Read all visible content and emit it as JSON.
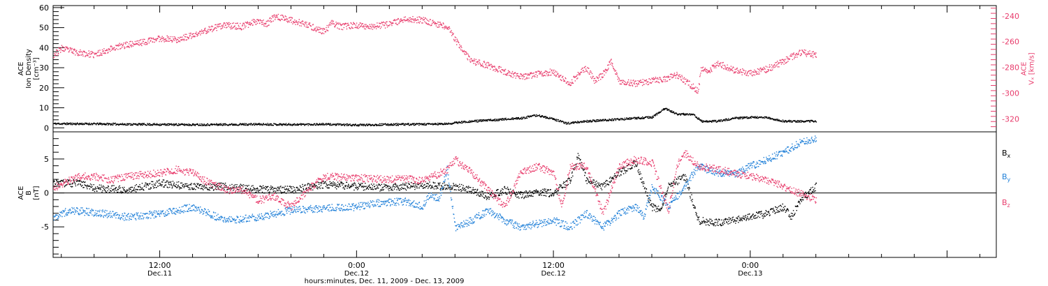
{
  "chart_data": [
    {
      "type": "scatter",
      "x_unit": "hours since 2009-12-11 00:00",
      "xlim": [
        5.5,
        63
      ],
      "x_ticks": [
        {
          "x": 12,
          "time": "12:00",
          "day": "Dec.11"
        },
        {
          "x": 24,
          "time": "0:00",
          "day": "Dec.12"
        },
        {
          "x": 36,
          "time": "12:00",
          "day": "Dec.12"
        },
        {
          "x": 48,
          "time": "0:00",
          "day": "Dec.13"
        }
      ],
      "xlabel": "hours:minutes, Dec. 11, 2009 - Dec. 13, 2009",
      "ylabel_left": [
        "ACE",
        "Ion Density",
        "[cm⁻³]"
      ],
      "ylim_left": [
        -2,
        61
      ],
      "yticks_left": [
        0,
        10,
        20,
        30,
        40,
        50,
        60
      ],
      "ylabel_right": [
        "ACE",
        "Vₓ [km/s]"
      ],
      "ylim_right": [
        -330,
        -232
      ],
      "yticks_right": [
        -320,
        -300,
        -280,
        -260,
        -240
      ],
      "series": [
        {
          "axis": "left",
          "color": "#000000",
          "points": [
            [
              5.5,
              2.3
            ],
            [
              8,
              2.2
            ],
            [
              10,
              2.0
            ],
            [
              12,
              1.9
            ],
            [
              14,
              1.8
            ],
            [
              16,
              1.9
            ],
            [
              18,
              2.0
            ],
            [
              20,
              1.9
            ],
            [
              22,
              2.0
            ],
            [
              24,
              1.6
            ],
            [
              26,
              1.9
            ],
            [
              28,
              2.0
            ],
            [
              29.5,
              2.2
            ],
            [
              30.5,
              3.2
            ],
            [
              32,
              4.0
            ],
            [
              33,
              4.5
            ],
            [
              34,
              5.0
            ],
            [
              35,
              6.5
            ],
            [
              36,
              4.5
            ],
            [
              36.8,
              2.5
            ],
            [
              38,
              3.5
            ],
            [
              39,
              4.0
            ],
            [
              40,
              4.5
            ],
            [
              41,
              5.0
            ],
            [
              42,
              5.5
            ],
            [
              42.8,
              10
            ],
            [
              43.5,
              7
            ],
            [
              44.5,
              7
            ],
            [
              45,
              3.5
            ],
            [
              46,
              3.5
            ],
            [
              47,
              5
            ],
            [
              48,
              5.5
            ],
            [
              49,
              5.3
            ],
            [
              50,
              3.5
            ],
            [
              51,
              3.5
            ],
            [
              52,
              3.6
            ]
          ]
        },
        {
          "axis": "right",
          "color": "#e83c6c",
          "points": [
            [
              5.5,
              -270
            ],
            [
              6,
              -265
            ],
            [
              7,
              -268
            ],
            [
              8,
              -270
            ],
            [
              9,
              -265
            ],
            [
              10,
              -262
            ],
            [
              11,
              -260
            ],
            [
              12,
              -257
            ],
            [
              13,
              -258
            ],
            [
              14,
              -255
            ],
            [
              15,
              -250
            ],
            [
              16,
              -247
            ],
            [
              17,
              -248
            ],
            [
              18,
              -243
            ],
            [
              18.5,
              -246
            ],
            [
              19,
              -240
            ],
            [
              20,
              -243
            ],
            [
              21,
              -247
            ],
            [
              22,
              -252
            ],
            [
              22.5,
              -245
            ],
            [
              23,
              -248
            ],
            [
              24,
              -247
            ],
            [
              25,
              -248
            ],
            [
              26,
              -246
            ],
            [
              27,
              -242
            ],
            [
              28,
              -243
            ],
            [
              29.5,
              -248
            ],
            [
              30.5,
              -268
            ],
            [
              31,
              -275
            ],
            [
              32,
              -278
            ],
            [
              33,
              -283
            ],
            [
              34,
              -287
            ],
            [
              35,
              -285
            ],
            [
              36,
              -283
            ],
            [
              36.5,
              -288
            ],
            [
              37,
              -292
            ],
            [
              37.5,
              -285
            ],
            [
              38,
              -280
            ],
            [
              38.5,
              -290
            ],
            [
              39,
              -285
            ],
            [
              39.5,
              -275
            ],
            [
              40,
              -290
            ],
            [
              41,
              -292
            ],
            [
              42,
              -290
            ],
            [
              43,
              -288
            ],
            [
              43.5,
              -285
            ],
            [
              44,
              -290
            ],
            [
              44.8,
              -298
            ],
            [
              45,
              -280
            ],
            [
              45.5,
              -282
            ],
            [
              46,
              -276
            ],
            [
              47,
              -282
            ],
            [
              48,
              -284
            ],
            [
              49,
              -281
            ],
            [
              50,
              -275
            ],
            [
              51,
              -268
            ],
            [
              52,
              -270
            ]
          ]
        }
      ]
    },
    {
      "type": "scatter",
      "x_unit": "hours since 2009-12-11 00:00",
      "xlim": [
        5.5,
        63
      ],
      "ylabel": [
        "ACE",
        "B",
        "[nT]"
      ],
      "ylim": [
        -9.5,
        9
      ],
      "yticks": [
        -5,
        0,
        5
      ],
      "zero_line": true,
      "legend_position": "right",
      "series": [
        {
          "name": "Bx",
          "name_main": "B",
          "name_sub": "x",
          "color": "#000000",
          "points": [
            [
              5.5,
              1.5
            ],
            [
              7,
              1.5
            ],
            [
              8,
              0.8
            ],
            [
              10,
              0.5
            ],
            [
              12,
              1.5
            ],
            [
              14,
              1.0
            ],
            [
              16,
              1.0
            ],
            [
              18,
              0.6
            ],
            [
              20,
              0.5
            ],
            [
              22,
              1.3
            ],
            [
              24,
              1.0
            ],
            [
              26,
              0.8
            ],
            [
              28,
              1.2
            ],
            [
              29.5,
              1.0
            ],
            [
              30.5,
              0.8
            ],
            [
              32,
              -0.5
            ],
            [
              33,
              0.5
            ],
            [
              34,
              -0.3
            ],
            [
              35,
              0.2
            ],
            [
              36,
              0
            ],
            [
              37,
              2.0
            ],
            [
              37.5,
              5.5
            ],
            [
              38,
              2.0
            ],
            [
              39,
              1.0
            ],
            [
              40,
              3.0
            ],
            [
              41,
              4.5
            ],
            [
              41.5,
              1.0
            ],
            [
              42,
              -2.0
            ],
            [
              42.5,
              -2.5
            ],
            [
              43,
              1.0
            ],
            [
              44,
              2.5
            ],
            [
              44.8,
              -4.0
            ],
            [
              45.5,
              -4.2
            ],
            [
              46,
              -4.3
            ],
            [
              47,
              -4.0
            ],
            [
              48,
              -3.5
            ],
            [
              49,
              -3.0
            ],
            [
              50,
              -2.0
            ],
            [
              50.5,
              -3.5
            ],
            [
              51,
              -1.0
            ],
            [
              52,
              1.0
            ]
          ]
        },
        {
          "name": "By",
          "name_main": "B",
          "name_sub": "y",
          "color": "#1e7fd8",
          "points": [
            [
              5.5,
              -3.5
            ],
            [
              6.5,
              -2.5
            ],
            [
              8,
              -2.8
            ],
            [
              10,
              -3.5
            ],
            [
              12,
              -3.0
            ],
            [
              13,
              -2.5
            ],
            [
              14,
              -2.0
            ],
            [
              15,
              -3.0
            ],
            [
              16,
              -4.0
            ],
            [
              18,
              -3.5
            ],
            [
              19,
              -3.0
            ],
            [
              20,
              -2.5
            ],
            [
              22,
              -2.2
            ],
            [
              24,
              -2.0
            ],
            [
              25,
              -1.5
            ],
            [
              26,
              -1.3
            ],
            [
              27,
              -1.2
            ],
            [
              28,
              -2.0
            ],
            [
              28.5,
              0
            ],
            [
              29,
              -1.0
            ],
            [
              29.5,
              3.5
            ],
            [
              30,
              -5.0
            ],
            [
              31,
              -4.0
            ],
            [
              32,
              -2.5
            ],
            [
              33,
              -4.0
            ],
            [
              34,
              -5.0
            ],
            [
              35,
              -4.5
            ],
            [
              36,
              -4.0
            ],
            [
              37,
              -5.0
            ],
            [
              38,
              -3.0
            ],
            [
              39,
              -5.0
            ],
            [
              40,
              -3.0
            ],
            [
              41,
              -2.0
            ],
            [
              41.5,
              -3.5
            ],
            [
              42,
              1.0
            ],
            [
              43,
              -2.0
            ],
            [
              44,
              1.0
            ],
            [
              44.8,
              4.0
            ],
            [
              46,
              3.0
            ],
            [
              47,
              2.8
            ],
            [
              48,
              4.0
            ],
            [
              49,
              5.0
            ],
            [
              50,
              6.0
            ],
            [
              51,
              7.5
            ],
            [
              52,
              8.0
            ]
          ]
        },
        {
          "name": "Bz",
          "name_main": "B",
          "name_sub": "z",
          "color": "#e83c6c",
          "points": [
            [
              5.5,
              0.8
            ],
            [
              7,
              2.5
            ],
            [
              8,
              2.5
            ],
            [
              9,
              2.0
            ],
            [
              10,
              2.5
            ],
            [
              12,
              3.0
            ],
            [
              13,
              3.5
            ],
            [
              14,
              3.0
            ],
            [
              15,
              1.5
            ],
            [
              16,
              0.5
            ],
            [
              17,
              0.5
            ],
            [
              18,
              -1.0
            ],
            [
              19,
              -0.5
            ],
            [
              20,
              -2.0
            ],
            [
              21,
              0.5
            ],
            [
              22,
              2.5
            ],
            [
              24,
              2.3
            ],
            [
              26,
              2.0
            ],
            [
              27,
              2.2
            ],
            [
              28,
              1.8
            ],
            [
              29.5,
              3.5
            ],
            [
              30,
              5.0
            ],
            [
              31,
              3.0
            ],
            [
              32,
              0.5
            ],
            [
              33,
              -2.0
            ],
            [
              34,
              3.0
            ],
            [
              35,
              4.0
            ],
            [
              36,
              3.0
            ],
            [
              36.5,
              -2.0
            ],
            [
              37,
              4.0
            ],
            [
              38,
              4.0
            ],
            [
              39,
              -3.0
            ],
            [
              40,
              4.0
            ],
            [
              41,
              5.0
            ],
            [
              42,
              4.5
            ],
            [
              43,
              -2.5
            ],
            [
              43.5,
              4.0
            ],
            [
              44,
              6.0
            ],
            [
              44.8,
              4.0
            ],
            [
              46,
              3.5
            ],
            [
              47,
              3.0
            ],
            [
              48,
              2.5
            ],
            [
              49,
              2.0
            ],
            [
              50,
              1.0
            ],
            [
              51,
              0
            ],
            [
              52,
              -1.0
            ]
          ]
        }
      ]
    }
  ]
}
